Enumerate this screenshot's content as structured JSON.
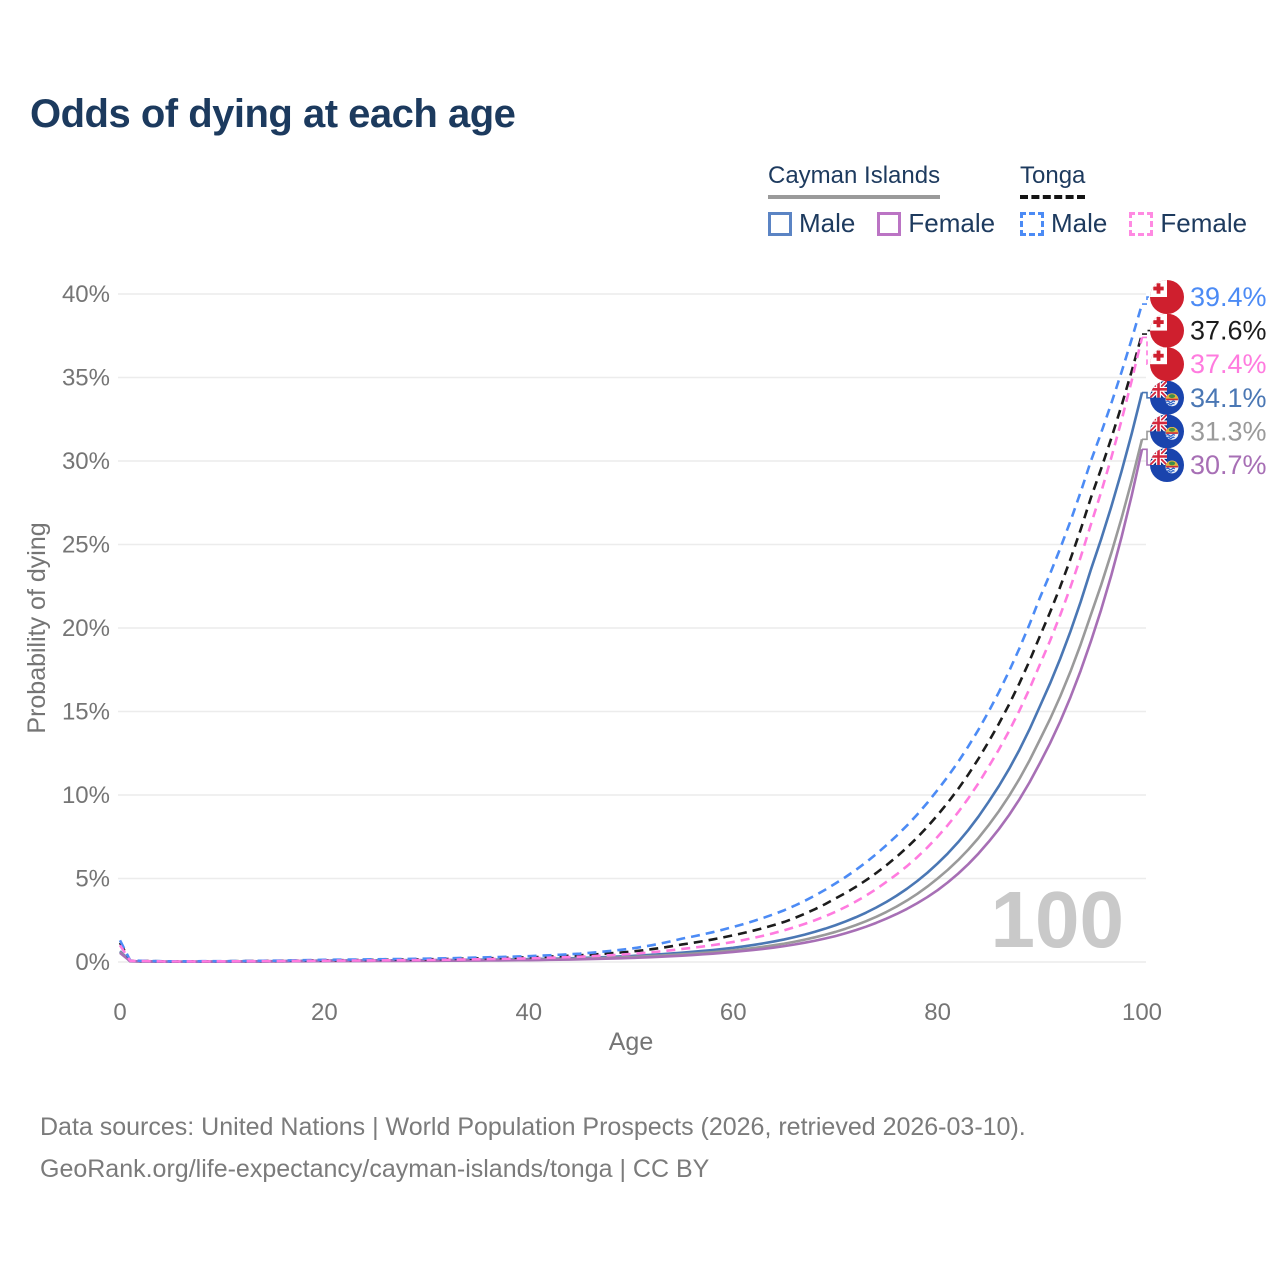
{
  "title": "Odds of dying at each age",
  "legend": {
    "groups": [
      {
        "label": "Cayman Islands",
        "line_style": "solid",
        "line_color": "#9a9a9a",
        "items": [
          {
            "label": "Male",
            "color": "#4a77b4",
            "style": "solid"
          },
          {
            "label": "Female",
            "color": "#b56cba",
            "style": "solid"
          }
        ]
      },
      {
        "label": "Tonga",
        "line_style": "dashed",
        "line_color": "#141414",
        "items": [
          {
            "label": "Male",
            "color": "#4c8bf5",
            "style": "dashed"
          },
          {
            "label": "Female",
            "color": "#ff7bdf",
            "style": "dashed"
          }
        ]
      }
    ]
  },
  "chart_data": {
    "type": "line",
    "title": "Odds of dying at each age",
    "xlabel": "Age",
    "ylabel": "Probability of dying",
    "xlim": [
      0,
      100
    ],
    "ylim": [
      0,
      40
    ],
    "xticks": [
      0,
      20,
      40,
      60,
      80,
      100
    ],
    "yticks": [
      0,
      5,
      10,
      15,
      20,
      25,
      30,
      35,
      40
    ],
    "ytick_format": "percent",
    "grid": true,
    "legend_position": "top-right",
    "watermark": "100",
    "x": [
      0,
      1,
      5,
      10,
      20,
      30,
      40,
      45,
      50,
      55,
      60,
      65,
      70,
      75,
      80,
      85,
      90,
      95,
      100
    ],
    "series": [
      {
        "name": "Cayman Islands — Male",
        "country": "cayman",
        "sex": "male",
        "style": "solid",
        "color": "#4a77b4",
        "values": [
          0.65,
          0.05,
          0.02,
          0.025,
          0.09,
          0.11,
          0.17,
          0.24,
          0.36,
          0.56,
          0.85,
          1.35,
          2.2,
          3.6,
          5.9,
          9.6,
          15.3,
          23.5,
          34.1
        ],
        "end_label": "34.1%",
        "end_value": 34.1
      },
      {
        "name": "Cayman Islands — Both sexes",
        "country": "cayman",
        "sex": "all",
        "style": "solid",
        "color": "#9a9a9a",
        "values": [
          0.6,
          0.045,
          0.018,
          0.02,
          0.07,
          0.09,
          0.14,
          0.2,
          0.3,
          0.46,
          0.7,
          1.1,
          1.8,
          3.0,
          5.0,
          8.2,
          13.3,
          20.8,
          31.3
        ],
        "end_label": "31.3%",
        "end_value": 31.3
      },
      {
        "name": "Cayman Islands — Female",
        "country": "cayman",
        "sex": "female",
        "style": "solid",
        "color": "#a76fb5",
        "values": [
          0.55,
          0.04,
          0.015,
          0.018,
          0.05,
          0.07,
          0.11,
          0.16,
          0.24,
          0.38,
          0.6,
          0.95,
          1.55,
          2.6,
          4.3,
          7.2,
          11.9,
          19.2,
          30.7
        ],
        "end_label": "30.7%",
        "end_value": 30.7
      },
      {
        "name": "Tonga — Both sexes",
        "country": "tonga",
        "sex": "all",
        "style": "dashed",
        "color": "#1c1c1c",
        "values": [
          1.15,
          0.08,
          0.035,
          0.045,
          0.1,
          0.16,
          0.28,
          0.4,
          0.62,
          1.05,
          1.6,
          2.4,
          3.8,
          5.8,
          8.8,
          13.2,
          19.5,
          27.8,
          37.6
        ],
        "end_label": "37.6%",
        "end_value": 37.6
      },
      {
        "name": "Tonga — Male",
        "country": "tonga",
        "sex": "male",
        "style": "dashed",
        "color": "#4c8bf5",
        "values": [
          1.3,
          0.09,
          0.04,
          0.05,
          0.13,
          0.2,
          0.35,
          0.5,
          0.8,
          1.4,
          2.1,
          3.1,
          4.7,
          7.0,
          10.3,
          15.0,
          21.8,
          30.0,
          39.4
        ],
        "end_label": "39.4%",
        "end_value": 39.4
      },
      {
        "name": "Tonga — Female",
        "country": "tonga",
        "sex": "female",
        "style": "dashed",
        "color": "#ff7bdf",
        "values": [
          1.0,
          0.07,
          0.03,
          0.04,
          0.08,
          0.12,
          0.22,
          0.32,
          0.48,
          0.78,
          1.2,
          1.9,
          3.0,
          4.8,
          7.5,
          11.7,
          17.8,
          26.2,
          37.4
        ],
        "end_label": "37.4%",
        "end_value": 37.4
      }
    ]
  },
  "footer": {
    "line1": "Data sources: United Nations | World Population Prospects (2026, retrieved 2026-03-10).",
    "line2": "GeoRank.org/life-expectancy/cayman-islands/tonga | CC BY"
  }
}
